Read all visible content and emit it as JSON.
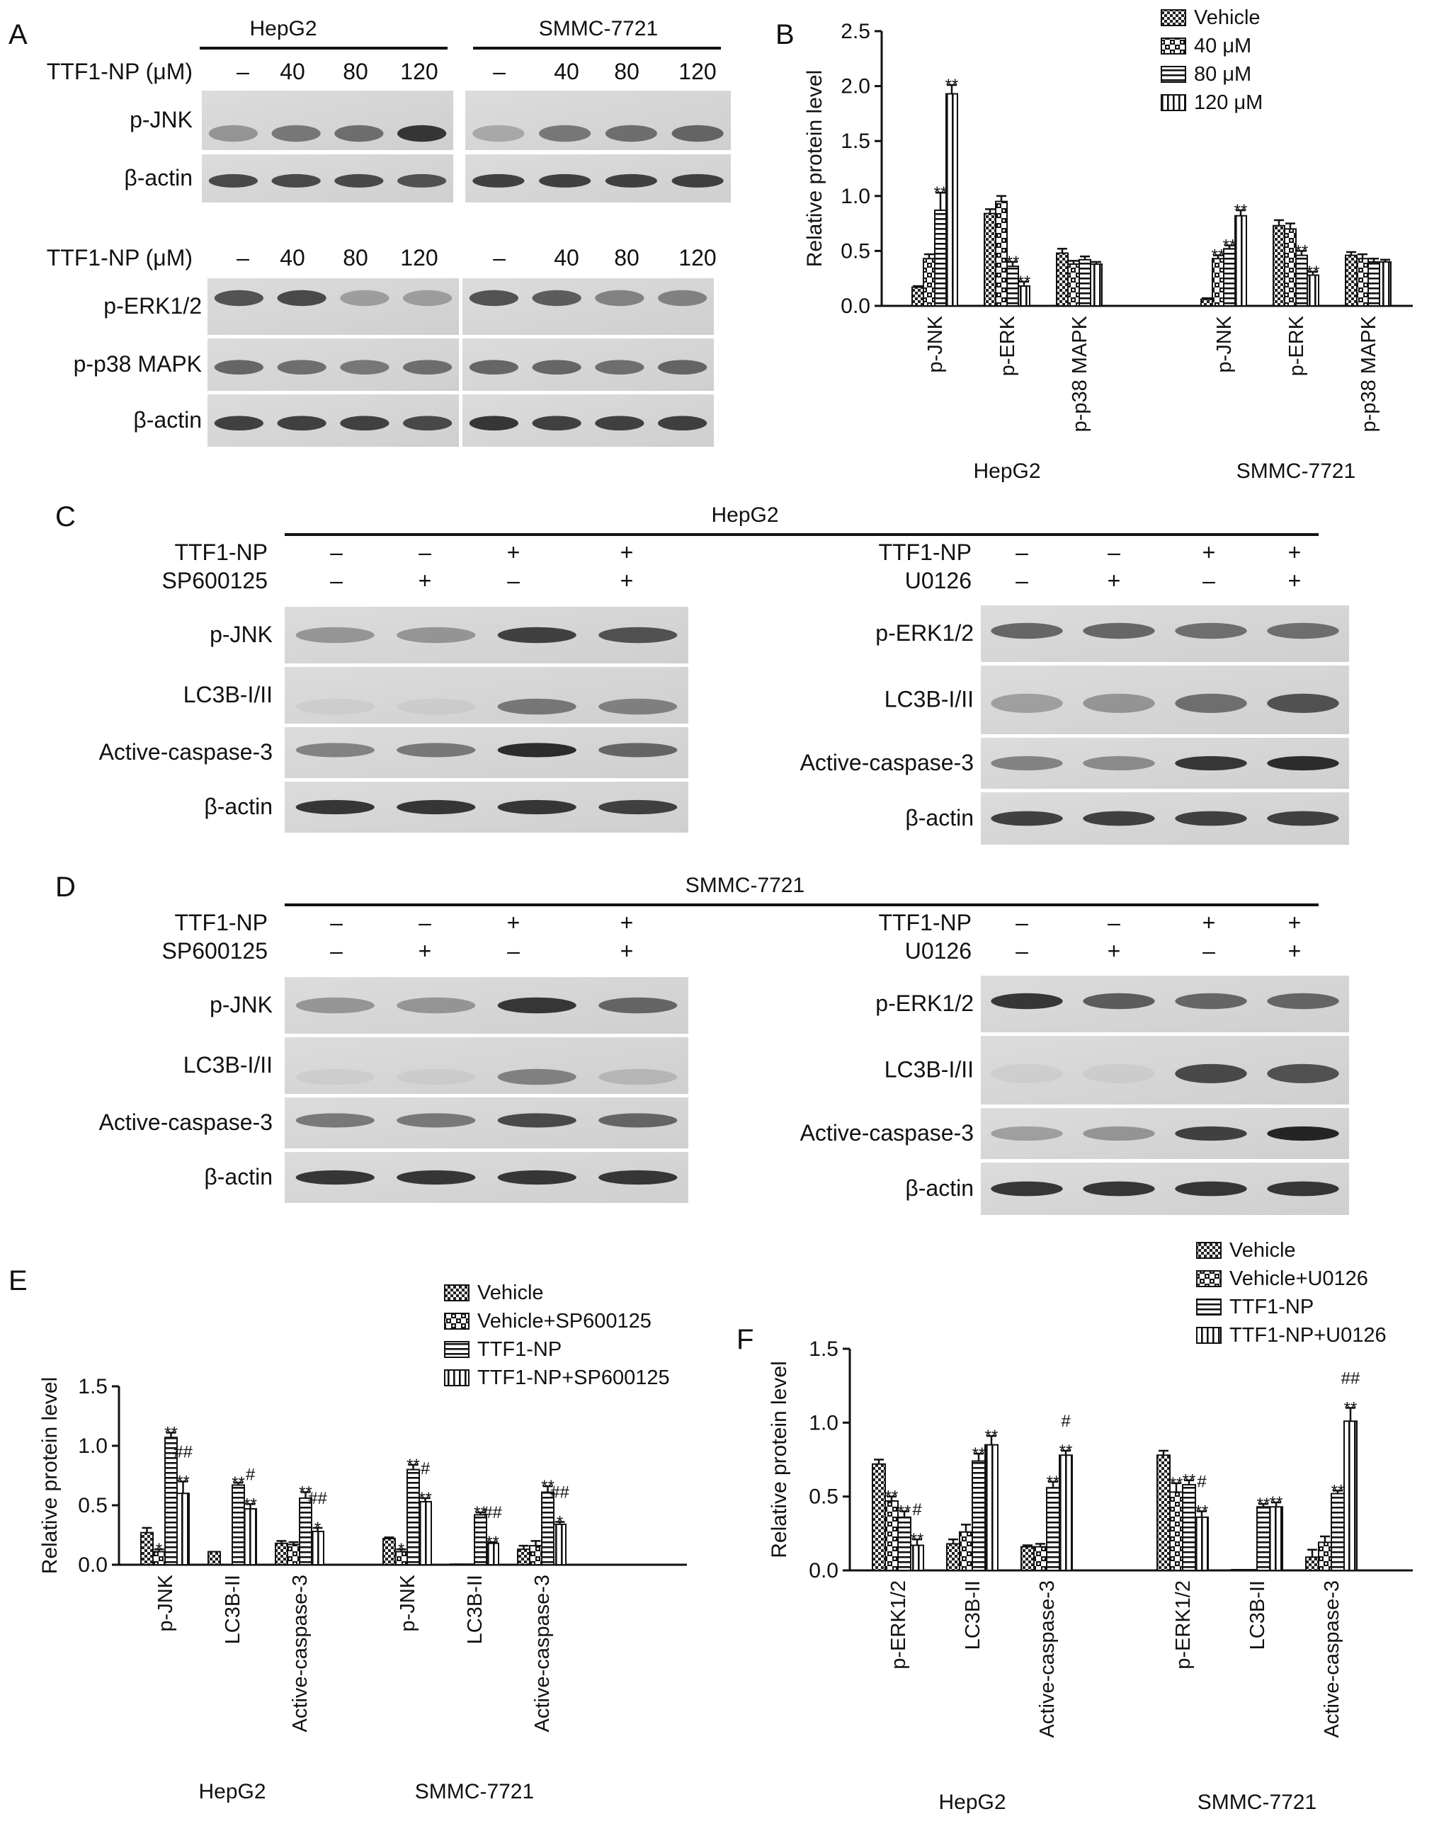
{
  "panels": {
    "A": {
      "label": "A",
      "cell_lines": [
        "HepG2",
        "SMMC-7721"
      ],
      "treatment_label": "TTF1-NP (μM)",
      "doses": [
        "–",
        "40",
        "80",
        "120"
      ],
      "blocks": [
        {
          "rows": [
            "p-JNK",
            "β-actin"
          ]
        },
        {
          "rows": [
            "p-ERK1/2",
            "p-p38 MAPK",
            "β-actin"
          ]
        }
      ]
    },
    "C": {
      "label": "C",
      "title": "HepG2",
      "left": {
        "conditions": [
          {
            "name": "TTF1-NP",
            "values": [
              "–",
              "–",
              "+",
              "+"
            ]
          },
          {
            "name": "SP600125",
            "values": [
              "–",
              "+",
              "–",
              "+"
            ]
          }
        ],
        "rows": [
          "p-JNK",
          "LC3B-I/II",
          "Active-caspase-3",
          "β-actin"
        ]
      },
      "right": {
        "conditions": [
          {
            "name": "TTF1-NP",
            "values": [
              "–",
              "–",
              "+",
              "+"
            ]
          },
          {
            "name": "U0126",
            "values": [
              "–",
              "+",
              "–",
              "+"
            ]
          }
        ],
        "rows": [
          "p-ERK1/2",
          "LC3B-I/II",
          "Active-caspase-3",
          "β-actin"
        ]
      }
    },
    "D": {
      "label": "D",
      "title": "SMMC-7721",
      "left": {
        "conditions": [
          {
            "name": "TTF1-NP",
            "values": [
              "–",
              "–",
              "+",
              "+"
            ]
          },
          {
            "name": "SP600125",
            "values": [
              "–",
              "+",
              "–",
              "+"
            ]
          }
        ],
        "rows": [
          "p-JNK",
          "LC3B-I/II",
          "Active-caspase-3",
          "β-actin"
        ]
      },
      "right": {
        "conditions": [
          {
            "name": "TTF1-NP",
            "values": [
              "–",
              "–",
              "+",
              "+"
            ]
          },
          {
            "name": "U0126",
            "values": [
              "–",
              "+",
              "–",
              "+"
            ]
          }
        ],
        "rows": [
          "p-ERK1/2",
          "LC3B-I/II",
          "Active-caspase-3",
          "β-actin"
        ]
      }
    }
  },
  "chart_data": [
    {
      "panel": "B",
      "type": "bar",
      "ylabel": "Relative protein level",
      "ylim": [
        0,
        2.5
      ],
      "yticks": [
        "0.0",
        "0.5",
        "1.0",
        "1.5",
        "2.0",
        "2.5"
      ],
      "groups": [
        {
          "name": "HepG2",
          "categories": [
            "p-JNK",
            "p-ERK",
            "p-p38 MAPK"
          ]
        },
        {
          "name": "SMMC-7721",
          "categories": [
            "p-JNK",
            "p-ERK",
            "p-p38 MAPK"
          ]
        }
      ],
      "series": [
        {
          "name": "Vehicle",
          "pattern": "checker",
          "values": [
            0.17,
            0.84,
            0.48,
            0.06,
            0.73,
            0.46
          ]
        },
        {
          "name": "40 μM",
          "pattern": "xcheck",
          "values": [
            0.43,
            0.95,
            0.38,
            0.43,
            0.7,
            0.43
          ]
        },
        {
          "name": "80 μM",
          "pattern": "hlines",
          "values": [
            0.87,
            0.36,
            0.42,
            0.52,
            0.46,
            0.4
          ]
        },
        {
          "name": "120 μM",
          "pattern": "vlines",
          "values": [
            1.93,
            0.18,
            0.38,
            0.82,
            0.28,
            0.4
          ]
        }
      ],
      "errors": [
        [
          0.01,
          0.04,
          0.04,
          0.01,
          0.05,
          0.03
        ],
        [
          0.04,
          0.05,
          0.03,
          0.03,
          0.05,
          0.04
        ],
        [
          0.16,
          0.04,
          0.03,
          0.03,
          0.04,
          0.03
        ],
        [
          0.08,
          0.04,
          0.02,
          0.05,
          0.03,
          0.02
        ]
      ],
      "annotations": [
        [
          "",
          "",
          "",
          "",
          "",
          ""
        ],
        [
          "",
          "",
          "",
          "**",
          "",
          ""
        ],
        [
          "**",
          "**",
          "",
          "**",
          "**",
          ""
        ],
        [
          "**",
          "**",
          "",
          "**",
          "**",
          ""
        ]
      ],
      "legend": "top-right"
    },
    {
      "panel": "E",
      "type": "bar",
      "ylabel": "Relative protein level",
      "ylim": [
        0,
        1.5
      ],
      "yticks": [
        "0.0",
        "0.5",
        "1.0",
        "1.5"
      ],
      "groups": [
        {
          "name": "HepG2",
          "categories": [
            "p-JNK",
            "LC3B-II",
            "Active-caspase-3"
          ]
        },
        {
          "name": "SMMC-7721",
          "categories": [
            "p-JNK",
            "LC3B-II",
            "Active-caspase-3"
          ]
        }
      ],
      "series": [
        {
          "name": "Vehicle",
          "pattern": "checker",
          "values": [
            0.27,
            0.11,
            0.18,
            0.22,
            0.005,
            0.13
          ]
        },
        {
          "name": "Vehicle+SP600125",
          "pattern": "xcheck",
          "values": [
            0.11,
            0.0,
            0.17,
            0.11,
            0.005,
            0.16
          ]
        },
        {
          "name": "TTF1-NP",
          "pattern": "hlines",
          "values": [
            1.07,
            0.67,
            0.56,
            0.8,
            0.42,
            0.61
          ]
        },
        {
          "name": "TTF1-NP+SP600125",
          "pattern": "vlines",
          "values": [
            0.6,
            0.47,
            0.28,
            0.53,
            0.18,
            0.34
          ]
        }
      ],
      "errors": [
        [
          0.04,
          0.0,
          0.02,
          0.01,
          0.0,
          0.03
        ],
        [
          0.02,
          0.0,
          0.02,
          0.02,
          0.0,
          0.04
        ],
        [
          0.04,
          0.02,
          0.05,
          0.04,
          0.02,
          0.05
        ],
        [
          0.1,
          0.04,
          0.03,
          0.03,
          0.01,
          0.02
        ]
      ],
      "annotations": [
        [
          "",
          "",
          "",
          "",
          "",
          ""
        ],
        [
          "*",
          "",
          "",
          "*",
          "",
          ""
        ],
        [
          "**",
          "**",
          "**",
          "**",
          "**",
          "**"
        ],
        [
          "##,**",
          "#,**",
          "##,*",
          "#,**",
          "##,**",
          "##,*"
        ]
      ],
      "legend": "top-right"
    },
    {
      "panel": "F",
      "type": "bar",
      "ylabel": "Relative protein level",
      "ylim": [
        0,
        1.5
      ],
      "yticks": [
        "0.0",
        "0.5",
        "1.0",
        "1.5"
      ],
      "groups": [
        {
          "name": "HepG2",
          "categories": [
            "p-ERK1/2",
            "LC3B-II",
            "Active-caspase-3"
          ]
        },
        {
          "name": "SMMC-7721",
          "categories": [
            "p-ERK1/2",
            "LC3B-II",
            "Active-caspase-3"
          ]
        }
      ],
      "series": [
        {
          "name": "Vehicle",
          "pattern": "checker",
          "values": [
            0.72,
            0.18,
            0.16,
            0.78,
            0.005,
            0.09
          ]
        },
        {
          "name": "Vehicle+U0126",
          "pattern": "xcheck",
          "values": [
            0.47,
            0.26,
            0.16,
            0.53,
            0.005,
            0.19
          ]
        },
        {
          "name": "TTF1-NP",
          "pattern": "hlines",
          "values": [
            0.36,
            0.74,
            0.56,
            0.58,
            0.43,
            0.52
          ]
        },
        {
          "name": "TTF1-NP+U0126",
          "pattern": "vlines",
          "values": [
            0.17,
            0.85,
            0.78,
            0.36,
            0.43,
            1.01
          ]
        }
      ],
      "errors": [
        [
          0.03,
          0.03,
          0.01,
          0.03,
          0.0,
          0.05
        ],
        [
          0.03,
          0.05,
          0.02,
          0.06,
          0.0,
          0.04
        ],
        [
          0.04,
          0.05,
          0.04,
          0.03,
          0.02,
          0.02
        ],
        [
          0.04,
          0.06,
          0.03,
          0.04,
          0.03,
          0.09
        ]
      ],
      "annotations": [
        [
          "",
          "",
          "",
          "",
          "",
          ""
        ],
        [
          "**",
          "",
          "",
          "**",
          "",
          ""
        ],
        [
          "**",
          "**",
          "**",
          "**",
          "**",
          "**"
        ],
        [
          "#,**",
          "**",
          "#,**",
          "#,**",
          "**",
          "##,**"
        ]
      ],
      "legend": "top-right"
    }
  ]
}
